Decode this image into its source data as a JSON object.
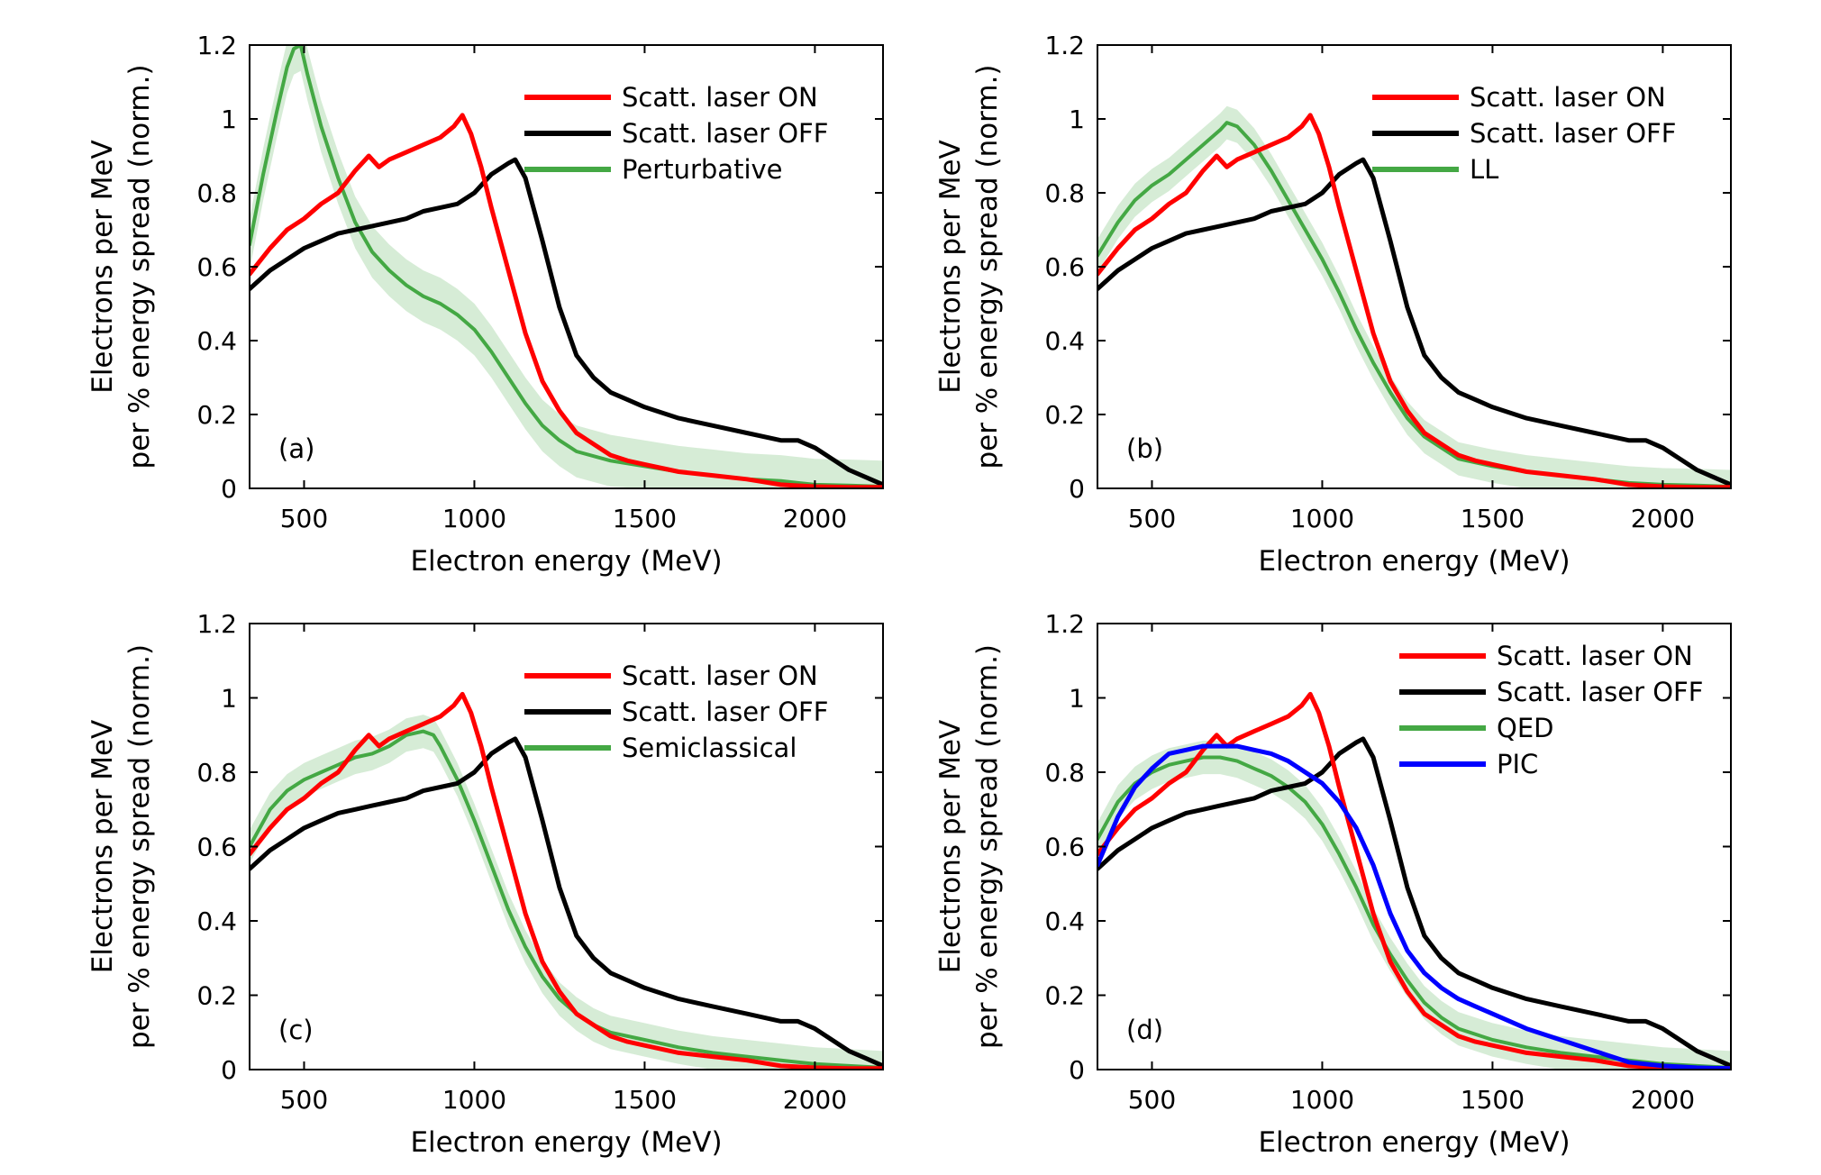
{
  "chart_data": [
    {
      "type": "line",
      "panel_label": "(a)",
      "xlabel": "Electron energy (MeV)",
      "ylabel": [
        "Electrons per MeV",
        "per % energy spread (norm.)"
      ],
      "xlim": [
        340,
        2200
      ],
      "ylim": [
        0,
        1.2
      ],
      "xticks": [
        500,
        1000,
        1500,
        2000
      ],
      "yticks": [
        0,
        0.2,
        0.4,
        0.6,
        0.8,
        1,
        1.2
      ],
      "grid": false,
      "legend_position": "top-right",
      "series": [
        {
          "name": "Scatt. laser ON",
          "color": "#ff0000",
          "x": [
            340,
            400,
            450,
            500,
            550,
            600,
            650,
            690,
            720,
            750,
            800,
            850,
            900,
            940,
            965,
            990,
            1020,
            1050,
            1100,
            1150,
            1200,
            1250,
            1300,
            1350,
            1400,
            1450,
            1500,
            1550,
            1600,
            1700,
            1800,
            1900,
            2000,
            2100,
            2200
          ],
          "y": [
            0.58,
            0.65,
            0.7,
            0.73,
            0.77,
            0.8,
            0.86,
            0.9,
            0.87,
            0.89,
            0.91,
            0.93,
            0.95,
            0.98,
            1.01,
            0.96,
            0.87,
            0.76,
            0.59,
            0.42,
            0.29,
            0.21,
            0.15,
            0.12,
            0.09,
            0.075,
            0.065,
            0.055,
            0.045,
            0.035,
            0.025,
            0.01,
            0.005,
            0.003,
            0.003
          ]
        },
        {
          "name": "Scatt. laser OFF",
          "color": "#000000",
          "x": [
            340,
            400,
            450,
            500,
            550,
            600,
            650,
            700,
            750,
            800,
            850,
            900,
            950,
            1000,
            1050,
            1100,
            1120,
            1150,
            1200,
            1250,
            1300,
            1350,
            1400,
            1450,
            1500,
            1600,
            1700,
            1800,
            1900,
            1950,
            2000,
            2050,
            2100,
            2150,
            2200
          ],
          "y": [
            0.54,
            0.59,
            0.62,
            0.65,
            0.67,
            0.69,
            0.7,
            0.71,
            0.72,
            0.73,
            0.75,
            0.76,
            0.77,
            0.8,
            0.85,
            0.88,
            0.89,
            0.84,
            0.67,
            0.49,
            0.36,
            0.3,
            0.26,
            0.24,
            0.22,
            0.19,
            0.17,
            0.15,
            0.13,
            0.13,
            0.11,
            0.08,
            0.05,
            0.03,
            0.01
          ]
        },
        {
          "name": "Perturbative",
          "color": "#44a844",
          "band": 0.07,
          "x": [
            340,
            380,
            420,
            450,
            470,
            490,
            510,
            550,
            600,
            650,
            700,
            750,
            800,
            850,
            900,
            950,
            1000,
            1050,
            1100,
            1150,
            1200,
            1250,
            1300,
            1400,
            1500,
            1600,
            1700,
            1800,
            1900,
            2000,
            2100,
            2200
          ],
          "y": [
            0.66,
            0.85,
            1.02,
            1.14,
            1.19,
            1.2,
            1.12,
            0.98,
            0.84,
            0.72,
            0.64,
            0.59,
            0.55,
            0.52,
            0.5,
            0.47,
            0.43,
            0.37,
            0.3,
            0.23,
            0.17,
            0.13,
            0.1,
            0.075,
            0.06,
            0.045,
            0.035,
            0.025,
            0.02,
            0.01,
            0.008,
            0.005
          ]
        }
      ]
    },
    {
      "type": "line",
      "panel_label": "(b)",
      "xlabel": "Electron energy (MeV)",
      "ylabel": [
        "Electrons per MeV",
        "per % energy spread (norm.)"
      ],
      "xlim": [
        340,
        2200
      ],
      "ylim": [
        0,
        1.2
      ],
      "xticks": [
        500,
        1000,
        1500,
        2000
      ],
      "yticks": [
        0,
        0.2,
        0.4,
        0.6,
        0.8,
        1,
        1.2
      ],
      "grid": false,
      "legend_position": "top-right",
      "series": [
        {
          "name": "Scatt. laser ON",
          "color": "#ff0000",
          "x": [
            340,
            400,
            450,
            500,
            550,
            600,
            650,
            690,
            720,
            750,
            800,
            850,
            900,
            940,
            965,
            990,
            1020,
            1050,
            1100,
            1150,
            1200,
            1250,
            1300,
            1350,
            1400,
            1450,
            1500,
            1550,
            1600,
            1700,
            1800,
            1900,
            2000,
            2100,
            2200
          ],
          "y": [
            0.58,
            0.65,
            0.7,
            0.73,
            0.77,
            0.8,
            0.86,
            0.9,
            0.87,
            0.89,
            0.91,
            0.93,
            0.95,
            0.98,
            1.01,
            0.96,
            0.87,
            0.76,
            0.59,
            0.42,
            0.29,
            0.21,
            0.15,
            0.12,
            0.09,
            0.075,
            0.065,
            0.055,
            0.045,
            0.035,
            0.025,
            0.01,
            0.005,
            0.003,
            0.003
          ]
        },
        {
          "name": "Scatt. laser OFF",
          "color": "#000000",
          "x": [
            340,
            400,
            450,
            500,
            550,
            600,
            650,
            700,
            750,
            800,
            850,
            900,
            950,
            1000,
            1050,
            1100,
            1120,
            1150,
            1200,
            1250,
            1300,
            1350,
            1400,
            1450,
            1500,
            1600,
            1700,
            1800,
            1900,
            1950,
            2000,
            2050,
            2100,
            2150,
            2200
          ],
          "y": [
            0.54,
            0.59,
            0.62,
            0.65,
            0.67,
            0.69,
            0.7,
            0.71,
            0.72,
            0.73,
            0.75,
            0.76,
            0.77,
            0.8,
            0.85,
            0.88,
            0.89,
            0.84,
            0.67,
            0.49,
            0.36,
            0.3,
            0.26,
            0.24,
            0.22,
            0.19,
            0.17,
            0.15,
            0.13,
            0.13,
            0.11,
            0.08,
            0.05,
            0.03,
            0.01
          ]
        },
        {
          "name": "LL",
          "color": "#44a844",
          "band": 0.045,
          "x": [
            340,
            400,
            450,
            500,
            550,
            600,
            650,
            700,
            720,
            750,
            800,
            850,
            900,
            950,
            1000,
            1050,
            1100,
            1150,
            1200,
            1250,
            1300,
            1350,
            1400,
            1500,
            1600,
            1700,
            1800,
            1900,
            2000,
            2100,
            2200
          ],
          "y": [
            0.63,
            0.72,
            0.78,
            0.82,
            0.85,
            0.89,
            0.93,
            0.97,
            0.99,
            0.98,
            0.93,
            0.86,
            0.78,
            0.7,
            0.62,
            0.53,
            0.43,
            0.34,
            0.26,
            0.19,
            0.14,
            0.11,
            0.08,
            0.06,
            0.045,
            0.035,
            0.025,
            0.015,
            0.01,
            0.008,
            0.005
          ]
        }
      ]
    },
    {
      "type": "line",
      "panel_label": "(c)",
      "xlabel": "Electron energy (MeV)",
      "ylabel": [
        "Electrons per MeV",
        "per % energy spread (norm.)"
      ],
      "xlim": [
        340,
        2200
      ],
      "ylim": [
        0,
        1.2
      ],
      "xticks": [
        500,
        1000,
        1500,
        2000
      ],
      "yticks": [
        0,
        0.2,
        0.4,
        0.6,
        0.8,
        1,
        1.2
      ],
      "grid": false,
      "legend_position": "top-right",
      "series": [
        {
          "name": "Scatt. laser ON",
          "color": "#ff0000",
          "x": [
            340,
            400,
            450,
            500,
            550,
            600,
            650,
            690,
            720,
            750,
            800,
            850,
            900,
            940,
            965,
            990,
            1020,
            1050,
            1100,
            1150,
            1200,
            1250,
            1300,
            1350,
            1400,
            1450,
            1500,
            1550,
            1600,
            1700,
            1800,
            1900,
            2000,
            2100,
            2200
          ],
          "y": [
            0.58,
            0.65,
            0.7,
            0.73,
            0.77,
            0.8,
            0.86,
            0.9,
            0.87,
            0.89,
            0.91,
            0.93,
            0.95,
            0.98,
            1.01,
            0.96,
            0.87,
            0.76,
            0.59,
            0.42,
            0.29,
            0.21,
            0.15,
            0.12,
            0.09,
            0.075,
            0.065,
            0.055,
            0.045,
            0.035,
            0.025,
            0.01,
            0.005,
            0.003,
            0.003
          ]
        },
        {
          "name": "Scatt. laser OFF",
          "color": "#000000",
          "x": [
            340,
            400,
            450,
            500,
            550,
            600,
            650,
            700,
            750,
            800,
            850,
            900,
            950,
            1000,
            1050,
            1100,
            1120,
            1150,
            1200,
            1250,
            1300,
            1350,
            1400,
            1450,
            1500,
            1600,
            1700,
            1800,
            1900,
            1950,
            2000,
            2050,
            2100,
            2150,
            2200
          ],
          "y": [
            0.54,
            0.59,
            0.62,
            0.65,
            0.67,
            0.69,
            0.7,
            0.71,
            0.72,
            0.73,
            0.75,
            0.76,
            0.77,
            0.8,
            0.85,
            0.88,
            0.89,
            0.84,
            0.67,
            0.49,
            0.36,
            0.3,
            0.26,
            0.24,
            0.22,
            0.19,
            0.17,
            0.15,
            0.13,
            0.13,
            0.11,
            0.08,
            0.05,
            0.03,
            0.01
          ]
        },
        {
          "name": "Semiclassical",
          "color": "#44a844",
          "band": 0.045,
          "x": [
            340,
            400,
            450,
            500,
            550,
            600,
            650,
            700,
            750,
            800,
            850,
            880,
            900,
            950,
            1000,
            1050,
            1100,
            1150,
            1200,
            1250,
            1300,
            1350,
            1400,
            1500,
            1600,
            1700,
            1800,
            1900,
            2000,
            2100,
            2200
          ],
          "y": [
            0.6,
            0.7,
            0.75,
            0.78,
            0.8,
            0.82,
            0.84,
            0.85,
            0.87,
            0.9,
            0.91,
            0.9,
            0.87,
            0.78,
            0.67,
            0.55,
            0.43,
            0.33,
            0.25,
            0.19,
            0.15,
            0.12,
            0.1,
            0.08,
            0.06,
            0.045,
            0.035,
            0.025,
            0.015,
            0.01,
            0.005
          ]
        }
      ]
    },
    {
      "type": "line",
      "panel_label": "(d)",
      "xlabel": "Electron energy (MeV)",
      "ylabel": [
        "Electrons per MeV",
        "per % energy spread (norm.)"
      ],
      "xlim": [
        340,
        2200
      ],
      "ylim": [
        0,
        1.2
      ],
      "xticks": [
        500,
        1000,
        1500,
        2000
      ],
      "yticks": [
        0,
        0.2,
        0.4,
        0.6,
        0.8,
        1,
        1.2
      ],
      "grid": false,
      "legend_position": "top-right",
      "series": [
        {
          "name": "Scatt. laser ON",
          "color": "#ff0000",
          "x": [
            340,
            400,
            450,
            500,
            550,
            600,
            650,
            690,
            720,
            750,
            800,
            850,
            900,
            940,
            965,
            990,
            1020,
            1050,
            1100,
            1150,
            1200,
            1250,
            1300,
            1350,
            1400,
            1450,
            1500,
            1550,
            1600,
            1700,
            1800,
            1900,
            2000,
            2100,
            2200
          ],
          "y": [
            0.58,
            0.65,
            0.7,
            0.73,
            0.77,
            0.8,
            0.86,
            0.9,
            0.87,
            0.89,
            0.91,
            0.93,
            0.95,
            0.98,
            1.01,
            0.96,
            0.87,
            0.76,
            0.59,
            0.42,
            0.29,
            0.21,
            0.15,
            0.12,
            0.09,
            0.075,
            0.065,
            0.055,
            0.045,
            0.035,
            0.025,
            0.01,
            0.005,
            0.003,
            0.003
          ]
        },
        {
          "name": "Scatt. laser OFF",
          "color": "#000000",
          "x": [
            340,
            400,
            450,
            500,
            550,
            600,
            650,
            700,
            750,
            800,
            850,
            900,
            950,
            1000,
            1050,
            1100,
            1120,
            1150,
            1200,
            1250,
            1300,
            1350,
            1400,
            1450,
            1500,
            1600,
            1700,
            1800,
            1900,
            1950,
            2000,
            2050,
            2100,
            2150,
            2200
          ],
          "y": [
            0.54,
            0.59,
            0.62,
            0.65,
            0.67,
            0.69,
            0.7,
            0.71,
            0.72,
            0.73,
            0.75,
            0.76,
            0.77,
            0.8,
            0.85,
            0.88,
            0.89,
            0.84,
            0.67,
            0.49,
            0.36,
            0.3,
            0.26,
            0.24,
            0.22,
            0.19,
            0.17,
            0.15,
            0.13,
            0.13,
            0.11,
            0.08,
            0.05,
            0.03,
            0.01
          ]
        },
        {
          "name": "QED",
          "color": "#44a844",
          "band": 0.045,
          "x": [
            340,
            400,
            450,
            500,
            550,
            600,
            650,
            700,
            750,
            800,
            850,
            900,
            950,
            1000,
            1050,
            1100,
            1150,
            1200,
            1250,
            1300,
            1350,
            1400,
            1500,
            1600,
            1700,
            1800,
            1900,
            2000,
            2100,
            2200
          ],
          "y": [
            0.62,
            0.72,
            0.77,
            0.8,
            0.82,
            0.83,
            0.84,
            0.84,
            0.83,
            0.81,
            0.79,
            0.76,
            0.72,
            0.66,
            0.58,
            0.49,
            0.39,
            0.31,
            0.24,
            0.18,
            0.14,
            0.11,
            0.08,
            0.06,
            0.045,
            0.035,
            0.025,
            0.015,
            0.01,
            0.005
          ]
        },
        {
          "name": "PIC",
          "color": "#0000ff",
          "x": [
            340,
            400,
            450,
            500,
            550,
            600,
            650,
            700,
            750,
            800,
            850,
            900,
            950,
            1000,
            1050,
            1100,
            1150,
            1200,
            1250,
            1300,
            1350,
            1400,
            1450,
            1500,
            1600,
            1700,
            1800,
            1900,
            2000,
            2100,
            2200
          ],
          "y": [
            0.55,
            0.68,
            0.76,
            0.81,
            0.85,
            0.86,
            0.87,
            0.87,
            0.87,
            0.86,
            0.85,
            0.83,
            0.8,
            0.77,
            0.72,
            0.65,
            0.55,
            0.42,
            0.32,
            0.26,
            0.22,
            0.19,
            0.17,
            0.15,
            0.11,
            0.08,
            0.05,
            0.02,
            0.01,
            0.005,
            0.003
          ]
        }
      ]
    }
  ]
}
